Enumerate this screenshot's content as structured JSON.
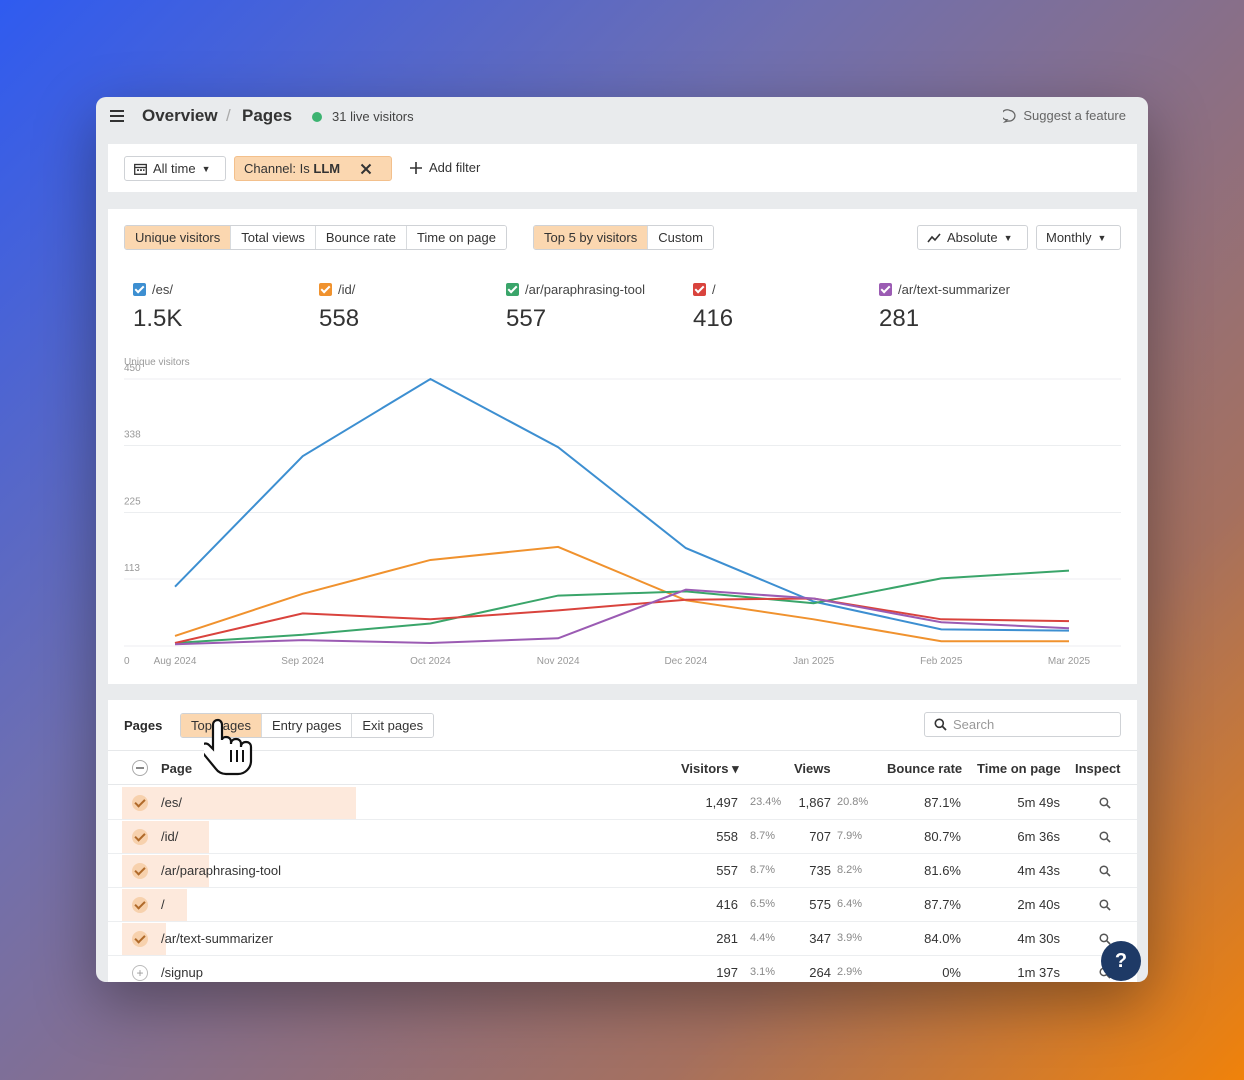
{
  "header": {
    "breadcrumb": [
      "Overview",
      "Pages"
    ],
    "separator": "/",
    "live_visitors": "31 live visitors",
    "suggest": "Suggest a feature"
  },
  "filters": {
    "date": "All time",
    "channel_prefix": "Channel: Is ",
    "channel_value": "LLM",
    "add_filter": "Add filter"
  },
  "chart_controls": {
    "metrics": [
      "Unique visitors",
      "Total views",
      "Bounce rate",
      "Time on page"
    ],
    "active_metric": "Unique visitors",
    "scope": [
      "Top 5 by visitors",
      "Custom"
    ],
    "active_scope": "Top 5 by visitors",
    "scale": "Absolute",
    "interval": "Monthly"
  },
  "legend": [
    {
      "name": "/es/",
      "value": "1.5K",
      "color": "#3d8fd1"
    },
    {
      "name": "/id/",
      "value": "558",
      "color": "#f0922e"
    },
    {
      "name": "/ar/paraphrasing-tool",
      "value": "557",
      "color": "#3aa56a"
    },
    {
      "name": "/",
      "value": "416",
      "color": "#d9433d"
    },
    {
      "name": "/ar/text-summarizer",
      "value": "281",
      "color": "#9b5bb3"
    }
  ],
  "chart_data": {
    "type": "line",
    "ylabel": "Unique visitors",
    "x": [
      "Aug 2024",
      "Sep 2024",
      "Oct 2024",
      "Nov 2024",
      "Dec 2024",
      "Jan 2025",
      "Feb 2025",
      "Mar 2025"
    ],
    "yticks": [
      0,
      113,
      225,
      338,
      450
    ],
    "ylim": [
      0,
      450
    ],
    "grid": true,
    "series": [
      {
        "name": "/es/",
        "color": "#3d8fd1",
        "values": [
          100,
          320,
          450,
          335,
          165,
          75,
          28,
          26
        ]
      },
      {
        "name": "/id/",
        "color": "#f0922e",
        "values": [
          17,
          88,
          145,
          167,
          77,
          45,
          8,
          8
        ]
      },
      {
        "name": "/ar/paraphrasing-tool",
        "color": "#3aa56a",
        "values": [
          5,
          19,
          38,
          85,
          92,
          72,
          114,
          127
        ]
      },
      {
        "name": "/",
        "color": "#d9433d",
        "values": [
          5,
          55,
          45,
          60,
          78,
          80,
          45,
          42
        ]
      },
      {
        "name": "/ar/text-summarizer",
        "color": "#9b5bb3",
        "values": [
          3,
          10,
          5,
          13,
          95,
          80,
          40,
          30
        ]
      }
    ]
  },
  "table": {
    "title": "Pages",
    "tabs": [
      "Top pages",
      "Entry pages",
      "Exit pages"
    ],
    "active_tab": "Top pages",
    "search_placeholder": "Search",
    "columns": [
      "Page",
      "Visitors",
      "Views",
      "Bounce rate",
      "Time on page",
      "Inspect"
    ],
    "sort_indicator": "▾",
    "rows": [
      {
        "page": "/es/",
        "visitors": "1,497",
        "visitors_pct": "23.4%",
        "views": "1,867",
        "views_pct": "20.8%",
        "bounce": "87.1%",
        "time": "5m 49s",
        "checked": true,
        "share": 0.234
      },
      {
        "page": "/id/",
        "visitors": "558",
        "visitors_pct": "8.7%",
        "views": "707",
        "views_pct": "7.9%",
        "bounce": "80.7%",
        "time": "6m 36s",
        "checked": true,
        "share": 0.087
      },
      {
        "page": "/ar/paraphrasing-tool",
        "visitors": "557",
        "visitors_pct": "8.7%",
        "views": "735",
        "views_pct": "8.2%",
        "bounce": "81.6%",
        "time": "4m 43s",
        "checked": true,
        "share": 0.087
      },
      {
        "page": "/",
        "visitors": "416",
        "visitors_pct": "6.5%",
        "views": "575",
        "views_pct": "6.4%",
        "bounce": "87.7%",
        "time": "2m 40s",
        "checked": true,
        "share": 0.065
      },
      {
        "page": "/ar/text-summarizer",
        "visitors": "281",
        "visitors_pct": "4.4%",
        "views": "347",
        "views_pct": "3.9%",
        "bounce": "84.0%",
        "time": "4m 30s",
        "checked": true,
        "share": 0.044
      },
      {
        "page": "/signup",
        "visitors": "197",
        "visitors_pct": "3.1%",
        "views": "264",
        "views_pct": "2.9%",
        "bounce": "0%",
        "time": "1m 37s",
        "checked": false,
        "share": 0.031
      }
    ]
  },
  "help": {
    "label": "?"
  }
}
